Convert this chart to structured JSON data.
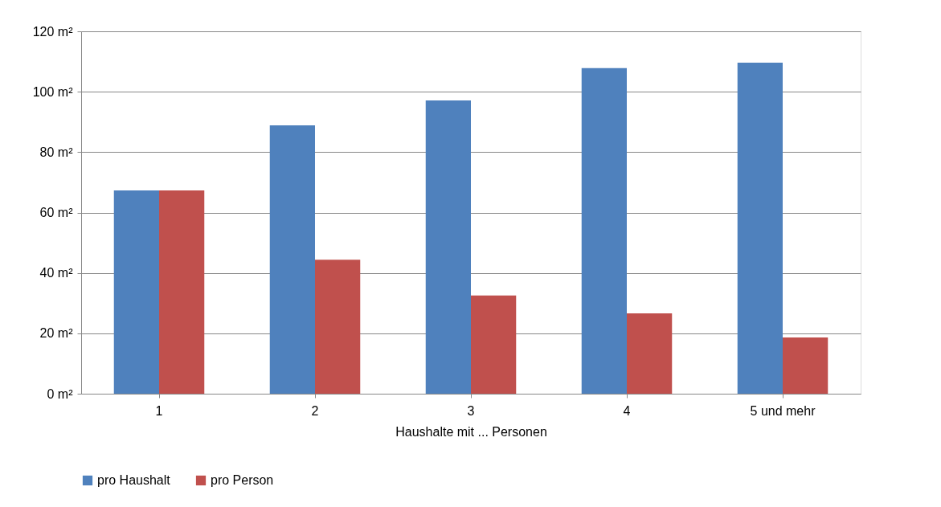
{
  "chart_data": {
    "type": "bar",
    "categories": [
      "1",
      "2",
      "3",
      "4",
      "5 und mehr"
    ],
    "xlabel": "Haushalte  mit ... Personen",
    "series": [
      {
        "name": "pro Haushalt",
        "color": "#4f81bd",
        "values": [
          67.3,
          88.9,
          97.1,
          107.8,
          109.6
        ]
      },
      {
        "name": "pro Person",
        "color": "#c0504d",
        "values": [
          67.3,
          44.4,
          32.5,
          26.6,
          18.6
        ]
      }
    ],
    "ylim": [
      0,
      120
    ],
    "yticks": [
      {
        "value": 0,
        "label": "0 m²"
      },
      {
        "value": 20,
        "label": "20 m²"
      },
      {
        "value": 40,
        "label": "40 m²"
      },
      {
        "value": 60,
        "label": "60 m²"
      },
      {
        "value": 80,
        "label": "80 m²"
      },
      {
        "value": 100,
        "label": "100 m²"
      },
      {
        "value": 120,
        "label": "120 m²"
      }
    ],
    "grid": "y",
    "legend": "bottom"
  }
}
